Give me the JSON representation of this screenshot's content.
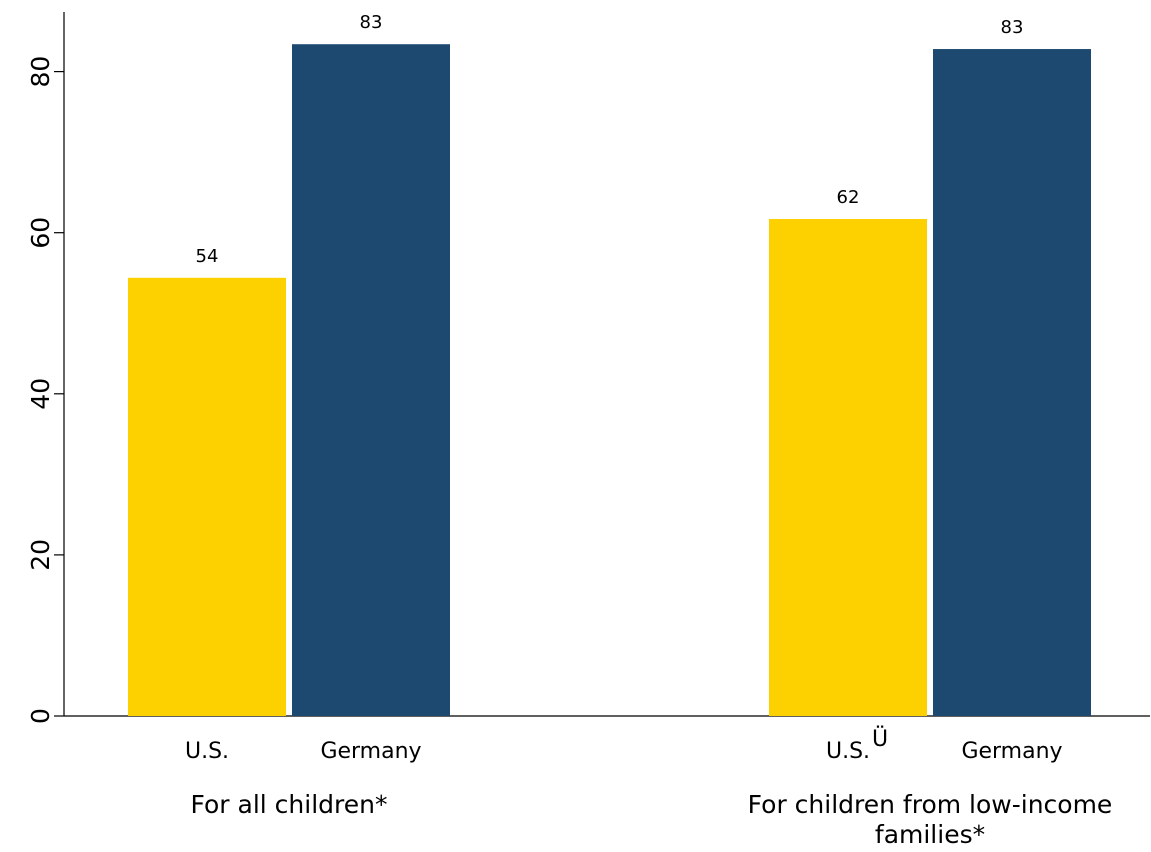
{
  "chart_data": {
    "type": "bar",
    "ylim": [
      0,
      87
    ],
    "yticks": [
      0,
      20,
      40,
      60,
      80
    ],
    "grid": false,
    "colors": {
      "us": "#FDD000",
      "germany": "#1D4870"
    },
    "groups": [
      {
        "label_lines": [
          "For all children*"
        ],
        "bars": [
          {
            "category": "U.S.",
            "value": 54.4,
            "label": "54",
            "color_key": "us"
          },
          {
            "category": "Germany",
            "value": 83.4,
            "label": "83",
            "color_key": "germany"
          }
        ]
      },
      {
        "label_lines": [
          "For children from low-income",
          "families*"
        ],
        "bars": [
          {
            "category": "U.S.",
            "marker": "Ü",
            "value": 61.7,
            "label": "62",
            "color_key": "us"
          },
          {
            "category": "Germany",
            "value": 82.8,
            "label": "83",
            "color_key": "germany"
          }
        ]
      }
    ]
  }
}
